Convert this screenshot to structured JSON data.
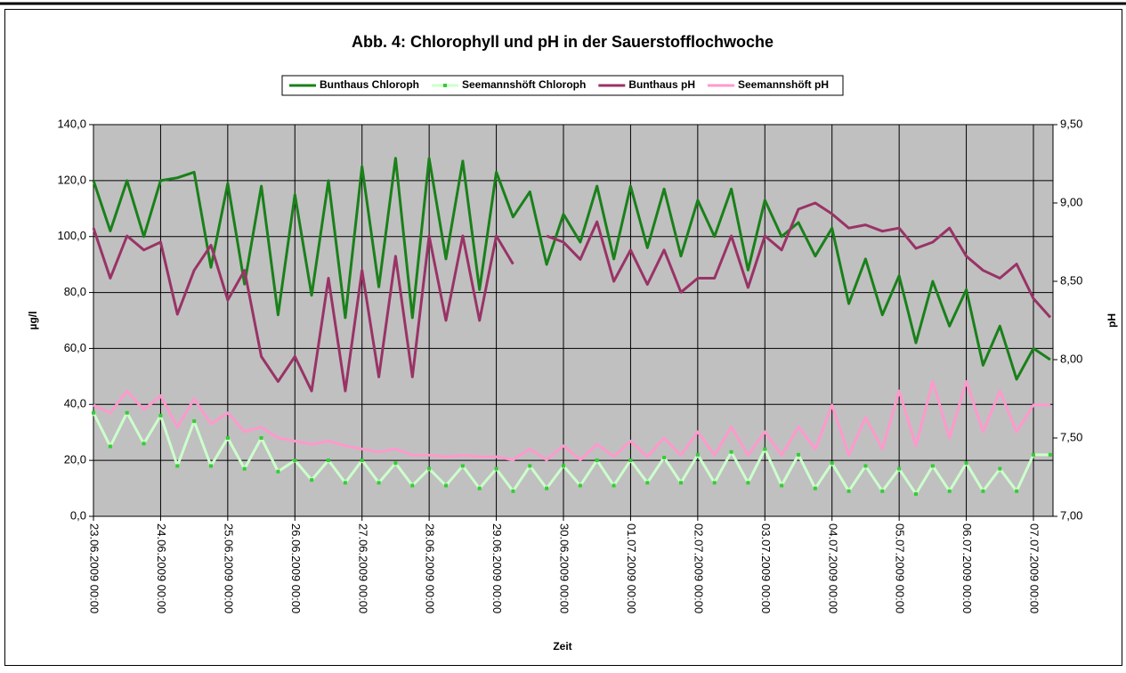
{
  "chart_data": {
    "type": "line",
    "title": "Abb. 4: Chlorophyll und pH in der Sauerstofflochwoche",
    "xlabel": "Zeit",
    "ylabel": "µg/l",
    "y2label": "pH",
    "x": [
      "23.06.2009 00:00",
      "23.06.2009 06:00",
      "23.06.2009 12:00",
      "23.06.2009 18:00",
      "24.06.2009 00:00",
      "24.06.2009 06:00",
      "24.06.2009 12:00",
      "24.06.2009 18:00",
      "25.06.2009 00:00",
      "25.06.2009 06:00",
      "25.06.2009 12:00",
      "25.06.2009 18:00",
      "26.06.2009 00:00",
      "26.06.2009 06:00",
      "26.06.2009 12:00",
      "26.06.2009 18:00",
      "27.06.2009 00:00",
      "27.06.2009 06:00",
      "27.06.2009 12:00",
      "27.06.2009 18:00",
      "28.06.2009 00:00",
      "28.06.2009 06:00",
      "28.06.2009 12:00",
      "28.06.2009 18:00",
      "29.06.2009 00:00",
      "29.06.2009 06:00",
      "29.06.2009 12:00",
      "29.06.2009 18:00",
      "30.06.2009 00:00",
      "30.06.2009 06:00",
      "30.06.2009 12:00",
      "30.06.2009 18:00",
      "01.07.2009 00:00",
      "01.07.2009 06:00",
      "01.07.2009 12:00",
      "01.07.2009 18:00",
      "02.07.2009 00:00",
      "02.07.2009 06:00",
      "02.07.2009 12:00",
      "02.07.2009 18:00",
      "03.07.2009 00:00",
      "03.07.2009 06:00",
      "03.07.2009 12:00",
      "03.07.2009 18:00",
      "04.07.2009 00:00",
      "04.07.2009 06:00",
      "04.07.2009 12:00",
      "04.07.2009 18:00",
      "05.07.2009 00:00",
      "05.07.2009 06:00",
      "05.07.2009 12:00",
      "05.07.2009 18:00",
      "06.07.2009 00:00",
      "06.07.2009 06:00",
      "06.07.2009 12:00",
      "06.07.2009 18:00",
      "07.07.2009 00:00",
      "07.07.2009 06:00"
    ],
    "series": [
      {
        "name": "Bunthaus Chloroph",
        "color": "#1a801a",
        "values": [
          120,
          102,
          120,
          100,
          120,
          121,
          123,
          89,
          119,
          83,
          118,
          72,
          115,
          79,
          120,
          71,
          125,
          82,
          128,
          71,
          128,
          92,
          127,
          81,
          123,
          107,
          116,
          90,
          108,
          98,
          118,
          92,
          118,
          96,
          117,
          93,
          113,
          100,
          117,
          88,
          113,
          100,
          105,
          93,
          103,
          76,
          92,
          72,
          86,
          62,
          84,
          68,
          81,
          54,
          68,
          49,
          60,
          56
        ]
      },
      {
        "name": "Seemannshöft Chloroph",
        "color": "#ccffcc",
        "marker_color": "#33cc33",
        "values": [
          37,
          25,
          37,
          26,
          36,
          18,
          34,
          18,
          28,
          17,
          28,
          16,
          20,
          13,
          20,
          12,
          20,
          12,
          19,
          11,
          17,
          11,
          18,
          10,
          17,
          9,
          18,
          10,
          18,
          11,
          20,
          11,
          20,
          12,
          21,
          12,
          22,
          12,
          23,
          12,
          24,
          11,
          22,
          10,
          19,
          9,
          18,
          9,
          17,
          8,
          18,
          9,
          19,
          9,
          17,
          9,
          22,
          22
        ]
      },
      {
        "name": "Bunthaus pH",
        "color": "#993366",
        "axis": "y2",
        "values": [
          8.84,
          8.52,
          8.79,
          8.7,
          8.75,
          8.29,
          8.57,
          8.73,
          8.38,
          8.57,
          8.02,
          7.86,
          8.02,
          7.8,
          8.52,
          7.8,
          8.57,
          7.89,
          8.66,
          7.89,
          8.79,
          8.25,
          8.79,
          8.25,
          8.79,
          8.61,
          null,
          8.79,
          8.75,
          8.64,
          8.88,
          8.5,
          8.7,
          8.48,
          8.7,
          8.43,
          8.52,
          8.52,
          8.79,
          8.46,
          8.79,
          8.7,
          8.96,
          9.0,
          8.93,
          8.84,
          8.86,
          8.82,
          8.84,
          8.71,
          8.75,
          8.84,
          8.66,
          8.57,
          8.52,
          8.61,
          8.39,
          8.27
        ]
      },
      {
        "name": "Seemannshöft pH",
        "color": "#ff99cc",
        "axis": "y2",
        "values": [
          7.71,
          7.66,
          7.8,
          7.68,
          7.77,
          7.57,
          7.75,
          7.59,
          7.66,
          7.54,
          7.57,
          7.5,
          7.48,
          7.46,
          7.48,
          7.45,
          7.43,
          7.41,
          7.43,
          7.39,
          7.39,
          7.38,
          7.39,
          7.38,
          7.38,
          7.36,
          7.43,
          7.36,
          7.45,
          7.36,
          7.46,
          7.38,
          7.48,
          7.38,
          7.5,
          7.39,
          7.54,
          7.39,
          7.57,
          7.39,
          7.54,
          7.39,
          7.57,
          7.43,
          7.71,
          7.39,
          7.63,
          7.43,
          7.8,
          7.45,
          7.86,
          7.5,
          7.86,
          7.54,
          7.8,
          7.54,
          7.71,
          7.71
        ]
      }
    ],
    "xlim": [
      "23.06.2009 00:00",
      "07.07.2009 07:00"
    ],
    "xticks": [
      "23.06.2009 00:00",
      "24.06.2009 00:00",
      "25.06.2009 00:00",
      "26.06.2009 00:00",
      "27.06.2009 00:00",
      "28.06.2009 00:00",
      "29.06.2009 00:00",
      "30.06.2009 00:00",
      "01.07.2009 00:00",
      "02.07.2009 00:00",
      "03.07.2009 00:00",
      "04.07.2009 00:00",
      "05.07.2009 00:00",
      "06.07.2009 00:00",
      "07.07.2009 00:00"
    ],
    "ylim": [
      0,
      140
    ],
    "yticks": [
      {
        "value": 0,
        "label": "0,0"
      },
      {
        "value": 20,
        "label": "20,0"
      },
      {
        "value": 40,
        "label": "40,0"
      },
      {
        "value": 60,
        "label": "60,0"
      },
      {
        "value": 80,
        "label": "80,0"
      },
      {
        "value": 100,
        "label": "100,0"
      },
      {
        "value": 120,
        "label": "120,0"
      },
      {
        "value": 140,
        "label": "140,0"
      }
    ],
    "y2lim": [
      7,
      9.5
    ],
    "y2ticks": [
      {
        "value": 7,
        "label": "7,00"
      },
      {
        "value": 7.5,
        "label": "7,50"
      },
      {
        "value": 8,
        "label": "8,00"
      },
      {
        "value": 8.5,
        "label": "8,50"
      },
      {
        "value": 9,
        "label": "9,00"
      },
      {
        "value": 9.5,
        "label": "9,50"
      }
    ],
    "grid": true,
    "legend": "top",
    "background": "#c0c0c0"
  }
}
